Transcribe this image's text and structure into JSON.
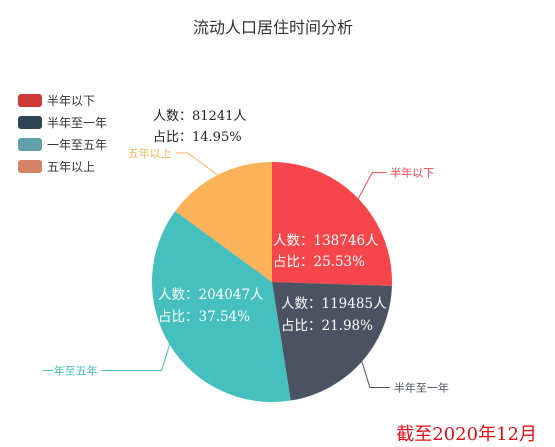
{
  "chart_data": {
    "type": "pie",
    "title": "流动人口居住时间分析",
    "legend_position": "top-left",
    "series": [
      {
        "name": "半年以下",
        "value": 138746,
        "percent": "25.53%",
        "color": "#f5464b",
        "people_label": "人数：138746人",
        "share_label": "占比：25.53%"
      },
      {
        "name": "半年至一年",
        "value": 119485,
        "percent": "21.98%",
        "color": "#4a5361",
        "people_label": "人数：119485人",
        "share_label": "占比：21.98%"
      },
      {
        "name": "一年至五年",
        "value": 204047,
        "percent": "37.54%",
        "color": "#45c0bf",
        "people_label": "人数：204047人",
        "share_label": "占比：37.54%"
      },
      {
        "name": "五年以上",
        "value": 81241,
        "percent": "14.95%",
        "color": "#fcb258",
        "people_label": "人数：81241人",
        "share_label": "占比：14.95%"
      }
    ],
    "legend_colors": [
      "#cf3a37",
      "#2f4554",
      "#61a0a8",
      "#d48265"
    ],
    "footer": "截至2020年12月"
  }
}
